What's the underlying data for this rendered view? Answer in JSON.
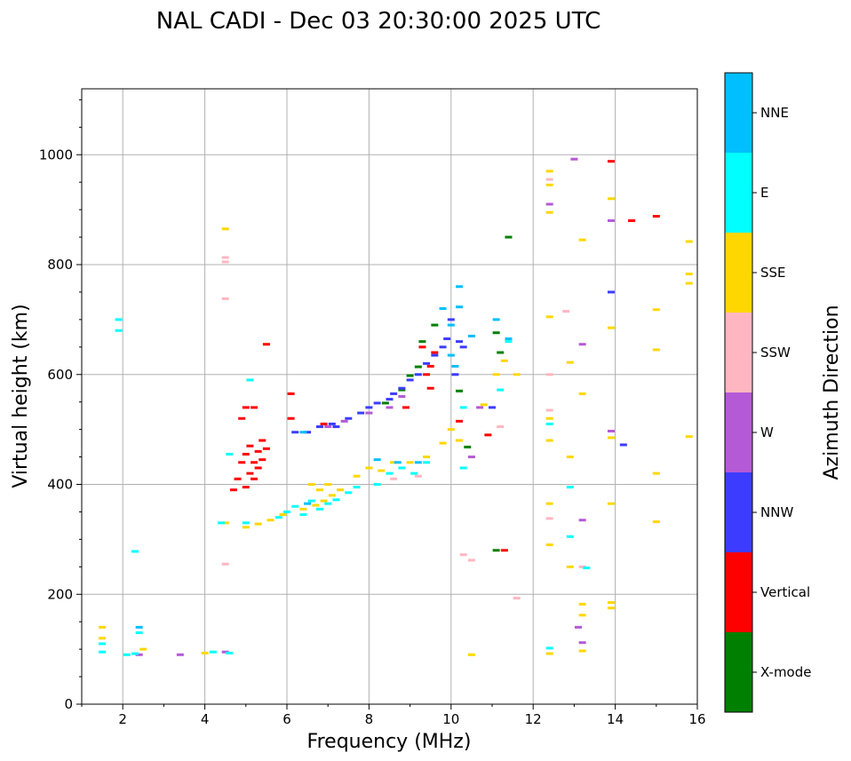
{
  "chart_data": {
    "type": "scatter",
    "title": "NAL CADI - Dec 03 20:30:00 2025 UTC",
    "xlabel": "Frequency (MHz)",
    "ylabel": "Virtual height (km)",
    "xlim": [
      1,
      16
    ],
    "ylim": [
      0,
      1120
    ],
    "xticks": [
      2,
      4,
      6,
      8,
      10,
      12,
      14,
      16
    ],
    "yticks": [
      0,
      200,
      400,
      600,
      800,
      1000
    ],
    "grid": true,
    "colorbar": {
      "label": "Azimuth Direction",
      "categories": [
        {
          "name": "X-mode",
          "color": "#008000"
        },
        {
          "name": "Vertical",
          "color": "#ff0000"
        },
        {
          "name": "NNW",
          "color": "#3c3cff"
        },
        {
          "name": "W",
          "color": "#b45ad6"
        },
        {
          "name": "SSW",
          "color": "#ffb6c1"
        },
        {
          "name": "SSE",
          "color": "#ffd700"
        },
        {
          "name": "E",
          "color": "#00ffff"
        },
        {
          "name": "NNE",
          "color": "#00bfff"
        }
      ]
    },
    "series": [
      {
        "name": "X-mode",
        "points": [
          [
            8.4,
            548
          ],
          [
            8.8,
            572
          ],
          [
            9.0,
            598
          ],
          [
            9.2,
            614
          ],
          [
            9.6,
            690
          ],
          [
            9.3,
            660
          ],
          [
            11.1,
            676
          ],
          [
            11.4,
            850
          ],
          [
            10.2,
            570
          ],
          [
            11.2,
            640
          ],
          [
            10.4,
            468
          ],
          [
            11.1,
            280
          ]
        ]
      },
      {
        "name": "Vertical",
        "points": [
          [
            4.7,
            390
          ],
          [
            4.8,
            410
          ],
          [
            4.9,
            440
          ],
          [
            5.0,
            455
          ],
          [
            5.0,
            395
          ],
          [
            5.1,
            420
          ],
          [
            5.1,
            470
          ],
          [
            5.2,
            440
          ],
          [
            5.2,
            410
          ],
          [
            5.3,
            460
          ],
          [
            5.3,
            430
          ],
          [
            5.4,
            480
          ],
          [
            5.4,
            445
          ],
          [
            5.5,
            465
          ],
          [
            4.9,
            520
          ],
          [
            5.0,
            540
          ],
          [
            5.2,
            540
          ],
          [
            5.5,
            655
          ],
          [
            6.1,
            520
          ],
          [
            6.1,
            565
          ],
          [
            9.4,
            600
          ],
          [
            9.5,
            615
          ],
          [
            9.5,
            575
          ],
          [
            9.3,
            650
          ],
          [
            9.6,
            640
          ],
          [
            10.2,
            515
          ],
          [
            10.2,
            480
          ],
          [
            10.9,
            490
          ],
          [
            11.3,
            280
          ],
          [
            13.9,
            988
          ],
          [
            14.4,
            880
          ],
          [
            15.0,
            888
          ],
          [
            6.9,
            510
          ],
          [
            8.9,
            540
          ]
        ]
      },
      {
        "name": "NNW",
        "points": [
          [
            6.2,
            495
          ],
          [
            6.5,
            495
          ],
          [
            6.8,
            505
          ],
          [
            7.1,
            510
          ],
          [
            7.5,
            520
          ],
          [
            7.8,
            530
          ],
          [
            8.0,
            540
          ],
          [
            8.2,
            548
          ],
          [
            8.5,
            555
          ],
          [
            8.6,
            565
          ],
          [
            8.8,
            575
          ],
          [
            9.0,
            590
          ],
          [
            9.2,
            600
          ],
          [
            9.4,
            620
          ],
          [
            9.6,
            635
          ],
          [
            9.8,
            650
          ],
          [
            9.9,
            665
          ],
          [
            10.0,
            700
          ],
          [
            10.2,
            660
          ],
          [
            10.3,
            650
          ],
          [
            10.1,
            600
          ],
          [
            11.0,
            540
          ],
          [
            13.9,
            750
          ],
          [
            14.2,
            472
          ],
          [
            7.2,
            505
          ]
        ]
      },
      {
        "name": "W",
        "points": [
          [
            7.0,
            505
          ],
          [
            7.4,
            515
          ],
          [
            8.0,
            530
          ],
          [
            8.5,
            540
          ],
          [
            8.8,
            560
          ],
          [
            10.5,
            450
          ],
          [
            10.7,
            540
          ],
          [
            12.4,
            910
          ],
          [
            13.0,
            992
          ],
          [
            13.2,
            655
          ],
          [
            13.2,
            335
          ],
          [
            13.1,
            140
          ],
          [
            13.2,
            112
          ],
          [
            13.9,
            880
          ],
          [
            13.9,
            497
          ],
          [
            4.5,
            95
          ],
          [
            2.4,
            90
          ],
          [
            3.4,
            90
          ]
        ]
      },
      {
        "name": "SSW",
        "points": [
          [
            4.5,
            813
          ],
          [
            4.5,
            805
          ],
          [
            4.5,
            738
          ],
          [
            4.5,
            255
          ],
          [
            10.3,
            272
          ],
          [
            10.5,
            262
          ],
          [
            11.6,
            193
          ],
          [
            12.4,
            955
          ],
          [
            12.4,
            600
          ],
          [
            12.4,
            535
          ],
          [
            12.4,
            338
          ],
          [
            13.2,
            250
          ],
          [
            11.2,
            505
          ],
          [
            9.2,
            415
          ],
          [
            8.6,
            410
          ],
          [
            12.8,
            715
          ]
        ]
      },
      {
        "name": "SSE",
        "points": [
          [
            1.5,
            140
          ],
          [
            1.5,
            120
          ],
          [
            2.5,
            100
          ],
          [
            4.5,
            865
          ],
          [
            4.0,
            93
          ],
          [
            4.5,
            330
          ],
          [
            5.0,
            322
          ],
          [
            5.3,
            328
          ],
          [
            5.6,
            335
          ],
          [
            5.9,
            345
          ],
          [
            6.4,
            355
          ],
          [
            6.7,
            362
          ],
          [
            6.9,
            370
          ],
          [
            7.1,
            380
          ],
          [
            6.6,
            400
          ],
          [
            7.0,
            400
          ],
          [
            6.8,
            390
          ],
          [
            7.3,
            390
          ],
          [
            7.7,
            415
          ],
          [
            8.0,
            430
          ],
          [
            8.3,
            425
          ],
          [
            8.6,
            440
          ],
          [
            9.0,
            440
          ],
          [
            9.4,
            450
          ],
          [
            9.8,
            475
          ],
          [
            10.0,
            500
          ],
          [
            10.2,
            480
          ],
          [
            10.5,
            90
          ],
          [
            10.8,
            545
          ],
          [
            11.1,
            600
          ],
          [
            11.3,
            625
          ],
          [
            11.6,
            600
          ],
          [
            12.4,
            970
          ],
          [
            12.4,
            945
          ],
          [
            12.4,
            895
          ],
          [
            12.4,
            705
          ],
          [
            12.4,
            520
          ],
          [
            12.4,
            480
          ],
          [
            12.4,
            365
          ],
          [
            12.4,
            290
          ],
          [
            12.4,
            92
          ],
          [
            12.9,
            622
          ],
          [
            12.9,
            450
          ],
          [
            12.9,
            250
          ],
          [
            13.2,
            845
          ],
          [
            13.2,
            565
          ],
          [
            13.2,
            182
          ],
          [
            13.2,
            162
          ],
          [
            13.2,
            97
          ],
          [
            13.9,
            920
          ],
          [
            13.9,
            685
          ],
          [
            13.9,
            485
          ],
          [
            13.9,
            365
          ],
          [
            13.9,
            185
          ],
          [
            13.9,
            175
          ],
          [
            15.0,
            718
          ],
          [
            15.0,
            645
          ],
          [
            15.0,
            420
          ],
          [
            15.0,
            332
          ],
          [
            15.8,
            842
          ],
          [
            15.8,
            783
          ],
          [
            15.8,
            766
          ],
          [
            15.8,
            487
          ]
        ]
      },
      {
        "name": "E",
        "points": [
          [
            1.5,
            110
          ],
          [
            1.5,
            95
          ],
          [
            2.1,
            90
          ],
          [
            2.3,
            92
          ],
          [
            2.4,
            130
          ],
          [
            2.3,
            278
          ],
          [
            1.9,
            700
          ],
          [
            1.9,
            680
          ],
          [
            4.2,
            95
          ],
          [
            4.6,
            93
          ],
          [
            4.6,
            455
          ],
          [
            5.1,
            590
          ],
          [
            4.4,
            330
          ],
          [
            5.0,
            330
          ],
          [
            5.8,
            340
          ],
          [
            6.0,
            350
          ],
          [
            6.2,
            360
          ],
          [
            6.4,
            345
          ],
          [
            6.6,
            370
          ],
          [
            6.8,
            355
          ],
          [
            7.0,
            365
          ],
          [
            7.2,
            372
          ],
          [
            7.5,
            385
          ],
          [
            7.7,
            395
          ],
          [
            8.2,
            400
          ],
          [
            8.5,
            420
          ],
          [
            8.8,
            430
          ],
          [
            9.1,
            420
          ],
          [
            9.4,
            440
          ],
          [
            10.3,
            430
          ],
          [
            10.3,
            540
          ],
          [
            11.4,
            660
          ],
          [
            12.4,
            102
          ],
          [
            12.4,
            510
          ],
          [
            12.9,
            395
          ],
          [
            12.9,
            305
          ],
          [
            13.3,
            248
          ],
          [
            11.2,
            572
          ]
        ]
      },
      {
        "name": "NNE",
        "points": [
          [
            2.4,
            140
          ],
          [
            6.4,
            495
          ],
          [
            8.2,
            445
          ],
          [
            8.7,
            440
          ],
          [
            9.2,
            440
          ],
          [
            9.8,
            720
          ],
          [
            10.0,
            690
          ],
          [
            10.2,
            760
          ],
          [
            10.2,
            723
          ],
          [
            10.5,
            670
          ],
          [
            11.1,
            700
          ],
          [
            11.4,
            665
          ],
          [
            10.1,
            615
          ],
          [
            10.0,
            635
          ],
          [
            6.5,
            365
          ]
        ]
      }
    ]
  }
}
